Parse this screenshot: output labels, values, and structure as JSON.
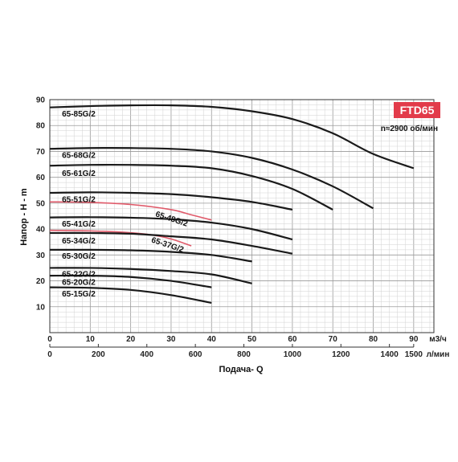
{
  "chart_data": {
    "type": "line",
    "badge": "FTD65",
    "speed": "n≈2900 об/мин",
    "ylabel": "Напор - H - m",
    "xlabel": "Подача- Q",
    "x_unit_top": "м3/ч",
    "x_unit_bottom": "л/мин",
    "xlim": [
      0,
      95
    ],
    "ylim": [
      0,
      90
    ],
    "x_ticks": [
      0,
      10,
      20,
      30,
      40,
      50,
      60,
      70,
      80,
      90
    ],
    "y_ticks": [
      10,
      20,
      30,
      40,
      50,
      60,
      70,
      80,
      90
    ],
    "x2_ticks": [
      0,
      200,
      400,
      600,
      800,
      1000,
      1200,
      1400,
      1500
    ],
    "grid": true,
    "colors": {
      "dark": "#1a1a1a",
      "red": "#e05a6a",
      "badge": "#e23b4a"
    },
    "series": [
      {
        "name": "65-85G/2",
        "color": "dark",
        "points": [
          [
            0,
            87
          ],
          [
            10,
            87.5
          ],
          [
            20,
            87.8
          ],
          [
            30,
            87.8
          ],
          [
            40,
            87.2
          ],
          [
            50,
            85.5
          ],
          [
            60,
            82.5
          ],
          [
            70,
            77
          ],
          [
            80,
            69
          ],
          [
            90,
            63.5
          ]
        ]
      },
      {
        "name": "65-68G/2",
        "color": "dark",
        "points": [
          [
            0,
            71
          ],
          [
            10,
            71.3
          ],
          [
            20,
            71.3
          ],
          [
            30,
            71
          ],
          [
            40,
            70
          ],
          [
            50,
            67.5
          ],
          [
            60,
            63
          ],
          [
            70,
            56.5
          ],
          [
            80,
            48
          ]
        ]
      },
      {
        "name": "65-61G/2",
        "color": "dark",
        "points": [
          [
            0,
            64.5
          ],
          [
            10,
            64.8
          ],
          [
            20,
            64.8
          ],
          [
            30,
            64.5
          ],
          [
            40,
            63.5
          ],
          [
            50,
            60.5
          ],
          [
            60,
            55.5
          ],
          [
            70,
            47.5
          ]
        ]
      },
      {
        "name": "65-51G/2",
        "color": "dark",
        "points": [
          [
            0,
            54
          ],
          [
            10,
            54.2
          ],
          [
            20,
            54
          ],
          [
            30,
            53.5
          ],
          [
            40,
            52.3
          ],
          [
            50,
            50.5
          ],
          [
            60,
            47.5
          ]
        ]
      },
      {
        "name": "65-48G/2",
        "color": "red",
        "points": [
          [
            0,
            50.5
          ],
          [
            10,
            50.3
          ],
          [
            20,
            49.5
          ],
          [
            30,
            47.5
          ],
          [
            35,
            45.5
          ],
          [
            40,
            43.5
          ]
        ]
      },
      {
        "name": "65-41G/2",
        "color": "dark",
        "points": [
          [
            0,
            44.5
          ],
          [
            10,
            44.6
          ],
          [
            20,
            44.4
          ],
          [
            30,
            43.8
          ],
          [
            40,
            42.5
          ],
          [
            50,
            40
          ],
          [
            60,
            36
          ]
        ]
      },
      {
        "name": "65-37G/2",
        "color": "red",
        "points": [
          [
            0,
            39.5
          ],
          [
            10,
            39.3
          ],
          [
            20,
            38.6
          ],
          [
            25,
            37.8
          ],
          [
            30,
            36.2
          ],
          [
            35,
            33.5
          ]
        ]
      },
      {
        "name": "65-34G/2",
        "color": "dark",
        "points": [
          [
            0,
            38.5
          ],
          [
            10,
            38.5
          ],
          [
            20,
            38.2
          ],
          [
            30,
            37.2
          ],
          [
            40,
            36
          ],
          [
            50,
            33.5
          ],
          [
            60,
            30.5
          ]
        ]
      },
      {
        "name": "65-30G/2",
        "color": "dark",
        "points": [
          [
            0,
            32
          ],
          [
            10,
            32
          ],
          [
            20,
            31.8
          ],
          [
            30,
            31.2
          ],
          [
            40,
            30
          ],
          [
            50,
            27.5
          ]
        ]
      },
      {
        "name": "65-22G/2",
        "color": "dark",
        "points": [
          [
            0,
            25
          ],
          [
            10,
            25
          ],
          [
            20,
            24.6
          ],
          [
            30,
            23.8
          ],
          [
            40,
            22.5
          ],
          [
            50,
            19
          ]
        ]
      },
      {
        "name": "65-20G/2",
        "color": "dark",
        "points": [
          [
            0,
            22
          ],
          [
            10,
            22
          ],
          [
            20,
            21.5
          ],
          [
            30,
            20
          ],
          [
            40,
            17.5
          ]
        ]
      },
      {
        "name": "65-15G/2",
        "color": "dark",
        "points": [
          [
            0,
            17.5
          ],
          [
            10,
            17.3
          ],
          [
            20,
            16.5
          ],
          [
            30,
            14.5
          ],
          [
            40,
            11.5
          ]
        ]
      }
    ],
    "labels": [
      {
        "text": "65-85G/2",
        "x": 3,
        "y": 83.5
      },
      {
        "text": "65-68G/2",
        "x": 3,
        "y": 67.5
      },
      {
        "text": "65-61G/2",
        "x": 3,
        "y": 60.5
      },
      {
        "text": "65-51G/2",
        "x": 3,
        "y": 50.5
      },
      {
        "text": "65-41G/2",
        "x": 3,
        "y": 41
      },
      {
        "text": "65-34G/2",
        "x": 3,
        "y": 34.5
      },
      {
        "text": "65-30G/2",
        "x": 3,
        "y": 28.5
      },
      {
        "text": "65-22G/2",
        "x": 3,
        "y": 21.5
      },
      {
        "text": "65-20G/2",
        "x": 3,
        "y": 18.5
      },
      {
        "text": "65-15G/2",
        "x": 3,
        "y": 14
      },
      {
        "text": "65-48G/2",
        "x": 26,
        "y": 45,
        "rotate": 18,
        "color": "red"
      },
      {
        "text": "65-37G/2",
        "x": 25,
        "y": 35,
        "rotate": 18,
        "color": "red"
      }
    ]
  }
}
